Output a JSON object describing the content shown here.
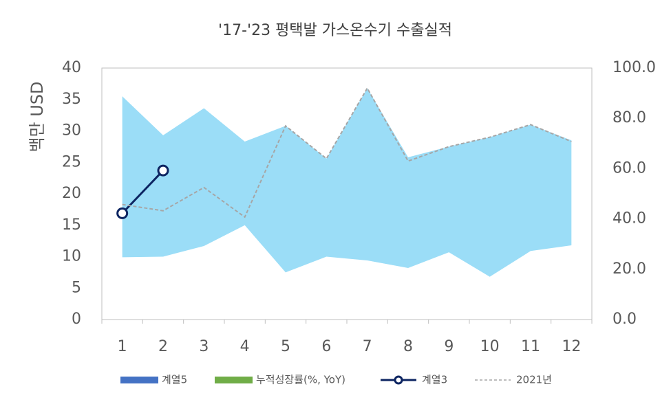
{
  "chart_data": {
    "type": "band-line",
    "title": "'17-'23 평택발 가스온수기 수출실적",
    "ylabel": "백만 USD",
    "categories": [
      "1",
      "2",
      "3",
      "4",
      "5",
      "6",
      "7",
      "8",
      "9",
      "10",
      "11",
      "12"
    ],
    "ylim": [
      0,
      40
    ],
    "yticks": [
      0,
      5,
      10,
      15,
      20,
      25,
      30,
      35,
      40
    ],
    "y2lim": [
      0,
      100
    ],
    "y2ticks": [
      {
        "value": 0,
        "label": "0.0"
      },
      {
        "value": 20,
        "label": "20.0"
      },
      {
        "value": 40,
        "label": "40.0"
      },
      {
        "value": 60,
        "label": "60.0"
      },
      {
        "value": 80,
        "label": "80.0"
      },
      {
        "value": 100,
        "label": "100.0"
      }
    ],
    "band": {
      "color": "#9bddf7",
      "low": [
        9.9,
        10,
        11.7,
        15,
        7.5,
        10,
        9.4,
        8.2,
        10.7,
        6.8,
        10.9,
        11.8
      ],
      "high": [
        35.5,
        29.3,
        33.6,
        28.3,
        30.8,
        25.6,
        36.8,
        25.8,
        27.5,
        29.0,
        31.0,
        28.5
      ]
    },
    "series": [
      {
        "name": "계열5",
        "kind": "bar",
        "color": "#4472c4",
        "values": [
          null,
          null,
          null,
          null,
          null,
          null,
          null,
          null,
          null,
          null,
          null,
          null
        ]
      },
      {
        "name": "누적성장률(%, YoY)",
        "kind": "bar",
        "axis": "y2",
        "color": "#70ad47",
        "values": [
          null,
          null,
          null,
          null,
          null,
          null,
          null,
          null,
          null,
          null,
          null,
          null
        ]
      },
      {
        "name": "계열3",
        "kind": "marker-line",
        "color": "#0c2461",
        "values": [
          16.9,
          23.7,
          null,
          null,
          null,
          null,
          null,
          null,
          null,
          null,
          null,
          null
        ]
      },
      {
        "name": "2021년",
        "kind": "dashed-line",
        "color": "#a6a6a6",
        "values": [
          18.3,
          17.3,
          21,
          16.3,
          30.8,
          25.6,
          36.8,
          25.2,
          27.5,
          29,
          31,
          28.3
        ]
      }
    ]
  }
}
